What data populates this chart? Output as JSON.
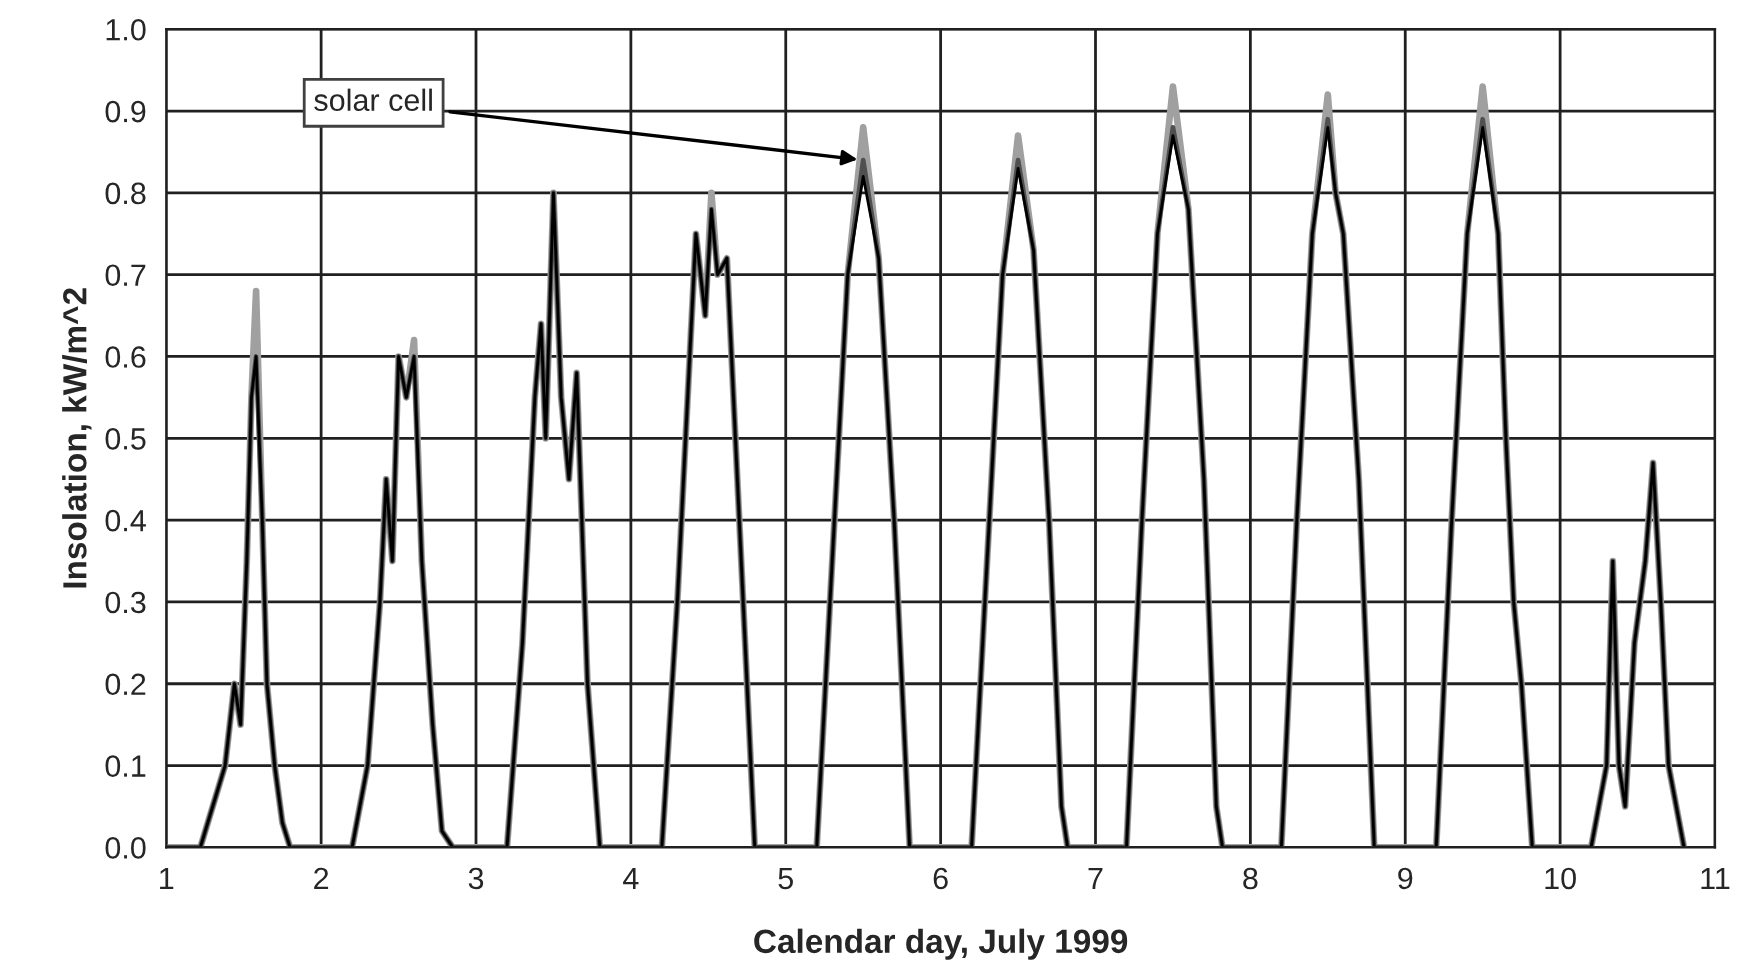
{
  "chart_data": {
    "type": "line",
    "xlabel": "Calendar day, July 1999",
    "ylabel": "Insolation, kW/m^2",
    "x": [
      1.0,
      1.22,
      1.3,
      1.38,
      1.44,
      1.48,
      1.52,
      1.55,
      1.58,
      1.62,
      1.65,
      1.7,
      1.75,
      1.8,
      2.2,
      2.3,
      2.38,
      2.42,
      2.46,
      2.5,
      2.55,
      2.6,
      2.65,
      2.72,
      2.78,
      2.85,
      3.2,
      3.3,
      3.38,
      3.42,
      3.45,
      3.5,
      3.55,
      3.6,
      3.65,
      3.72,
      3.8,
      4.2,
      4.3,
      4.38,
      4.42,
      4.48,
      4.52,
      4.56,
      4.62,
      4.7,
      4.8,
      5.2,
      5.3,
      5.4,
      5.5,
      5.6,
      5.7,
      5.8,
      6.2,
      6.3,
      6.4,
      6.5,
      6.6,
      6.7,
      6.78,
      6.82,
      7.2,
      7.3,
      7.4,
      7.5,
      7.6,
      7.7,
      7.78,
      7.82,
      8.2,
      8.3,
      8.4,
      8.5,
      8.55,
      8.6,
      8.7,
      8.8,
      9.2,
      9.3,
      9.4,
      9.5,
      9.6,
      9.65,
      9.7,
      9.75,
      9.82,
      10.2,
      10.3,
      10.34,
      10.38,
      10.42,
      10.48,
      10.55,
      10.6,
      10.65,
      10.7,
      10.8
    ],
    "series": [
      {
        "color": "#a0a0a0",
        "values": [
          0,
          0,
          0.05,
          0.1,
          0.2,
          0.15,
          0.35,
          0.55,
          0.68,
          0.4,
          0.2,
          0.1,
          0.03,
          0,
          0,
          0.1,
          0.3,
          0.45,
          0.35,
          0.6,
          0.55,
          0.62,
          0.35,
          0.15,
          0.02,
          0,
          0,
          0.25,
          0.55,
          0.64,
          0.5,
          0.8,
          0.55,
          0.45,
          0.58,
          0.2,
          0,
          0,
          0.3,
          0.6,
          0.75,
          0.65,
          0.8,
          0.7,
          0.72,
          0.4,
          0,
          0,
          0.35,
          0.7,
          0.88,
          0.72,
          0.4,
          0,
          0,
          0.35,
          0.7,
          0.87,
          0.73,
          0.4,
          0.05,
          0,
          0,
          0.4,
          0.75,
          0.93,
          0.78,
          0.45,
          0.05,
          0,
          0,
          0.4,
          0.75,
          0.92,
          0.8,
          0.75,
          0.45,
          0,
          0,
          0.4,
          0.75,
          0.93,
          0.75,
          0.5,
          0.3,
          0.2,
          0,
          0,
          0.1,
          0.35,
          0.1,
          0.05,
          0.25,
          0.35,
          0.47,
          0.3,
          0.1,
          0
        ]
      },
      {
        "color": "#505050",
        "values": [
          0,
          0,
          0.05,
          0.1,
          0.2,
          0.15,
          0.35,
          0.55,
          0.6,
          0.4,
          0.2,
          0.1,
          0.03,
          0,
          0,
          0.1,
          0.3,
          0.45,
          0.35,
          0.6,
          0.55,
          0.6,
          0.35,
          0.15,
          0.02,
          0,
          0,
          0.25,
          0.55,
          0.64,
          0.5,
          0.8,
          0.55,
          0.45,
          0.58,
          0.2,
          0,
          0,
          0.3,
          0.6,
          0.75,
          0.65,
          0.78,
          0.7,
          0.72,
          0.4,
          0,
          0,
          0.35,
          0.7,
          0.84,
          0.72,
          0.4,
          0,
          0,
          0.35,
          0.7,
          0.84,
          0.73,
          0.4,
          0.05,
          0,
          0,
          0.4,
          0.75,
          0.88,
          0.78,
          0.45,
          0.05,
          0,
          0,
          0.4,
          0.75,
          0.89,
          0.8,
          0.75,
          0.45,
          0,
          0,
          0.4,
          0.75,
          0.89,
          0.75,
          0.5,
          0.3,
          0.2,
          0,
          0,
          0.1,
          0.35,
          0.1,
          0.05,
          0.25,
          0.35,
          0.47,
          0.3,
          0.1,
          0
        ]
      },
      {
        "color": "#000000",
        "values": [
          0,
          0,
          0.05,
          0.1,
          0.2,
          0.15,
          0.35,
          0.55,
          0.6,
          0.4,
          0.2,
          0.1,
          0.03,
          0,
          0,
          0.1,
          0.3,
          0.45,
          0.35,
          0.6,
          0.55,
          0.6,
          0.35,
          0.15,
          0.02,
          0,
          0,
          0.25,
          0.55,
          0.64,
          0.5,
          0.8,
          0.55,
          0.45,
          0.58,
          0.2,
          0,
          0,
          0.3,
          0.6,
          0.75,
          0.65,
          0.78,
          0.7,
          0.72,
          0.4,
          0,
          0,
          0.35,
          0.7,
          0.82,
          0.72,
          0.4,
          0,
          0,
          0.35,
          0.7,
          0.83,
          0.73,
          0.4,
          0.05,
          0,
          0,
          0.4,
          0.75,
          0.87,
          0.78,
          0.45,
          0.05,
          0,
          0,
          0.4,
          0.75,
          0.88,
          0.8,
          0.75,
          0.45,
          0,
          0,
          0.4,
          0.75,
          0.88,
          0.75,
          0.5,
          0.3,
          0.2,
          0,
          0,
          0.1,
          0.35,
          0.1,
          0.05,
          0.25,
          0.35,
          0.47,
          0.3,
          0.1,
          0
        ]
      }
    ],
    "xlim": [
      1,
      11
    ],
    "xticks": [
      1,
      2,
      3,
      4,
      5,
      6,
      7,
      8,
      9,
      10,
      11
    ],
    "ylim": [
      0,
      1.0
    ],
    "yticks": [
      {
        "value": 0,
        "label": "0.0"
      },
      {
        "value": 0.1,
        "label": "0.1"
      },
      {
        "value": 0.2,
        "label": "0.2"
      },
      {
        "value": 0.3,
        "label": "0.3"
      },
      {
        "value": 0.4,
        "label": "0.4"
      },
      {
        "value": 0.5,
        "label": "0.5"
      },
      {
        "value": 0.6,
        "label": "0.6"
      },
      {
        "value": 0.7,
        "label": "0.7"
      },
      {
        "value": 0.8,
        "label": "0.8"
      },
      {
        "value": 0.9,
        "label": "0.9"
      },
      {
        "value": 1.0,
        "label": "1.0"
      }
    ],
    "grid": true,
    "line_style": "solid",
    "marker": "none",
    "annotations": [
      {
        "text": "solar cell",
        "x": 5.5,
        "y": 0.84
      }
    ]
  }
}
